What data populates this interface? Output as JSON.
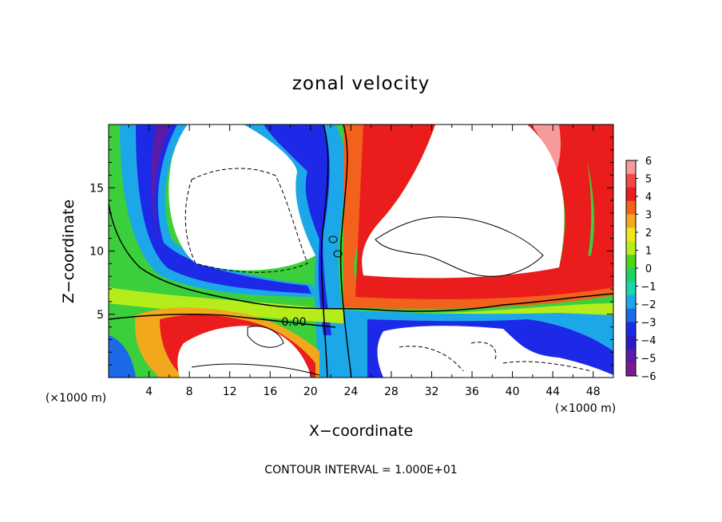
{
  "chart_data": {
    "type": "heatmap",
    "title": "zonal velocity",
    "xlabel": "X−coordinate",
    "ylabel": "Z−coordinate",
    "x_unit": "(×1000 m)",
    "x_unit_right": "(×1000 m)",
    "xlim": [
      0,
      50
    ],
    "ylim": [
      0,
      20
    ],
    "x_ticks": [
      "4",
      "8",
      "12",
      "16",
      "20",
      "24",
      "28",
      "32",
      "36",
      "40",
      "44",
      "48"
    ],
    "y_ticks": [
      "5",
      "10",
      "15"
    ],
    "colorbar": {
      "ticks": [
        "6",
        "5",
        "4",
        "3",
        "2",
        "1",
        "0",
        "−1",
        "−2",
        "−3",
        "−4",
        "−5",
        "−6"
      ],
      "range": [
        -6,
        6
      ],
      "colors": [
        "#f69a9a",
        "#f24848",
        "#ea1c1c",
        "#f2621c",
        "#f2a81c",
        "#f0e41c",
        "#b4ec1c",
        "#4ed41c",
        "#1cd45e",
        "#1cd4b2",
        "#1ca8e8",
        "#1c6ae8",
        "#1c2ae8",
        "#2a1cc6",
        "#5a1ca6",
        "#7a1c8e"
      ]
    },
    "contour_label": "0.00",
    "footer": "CONTOUR INTERVAL = 1.000E+01"
  }
}
